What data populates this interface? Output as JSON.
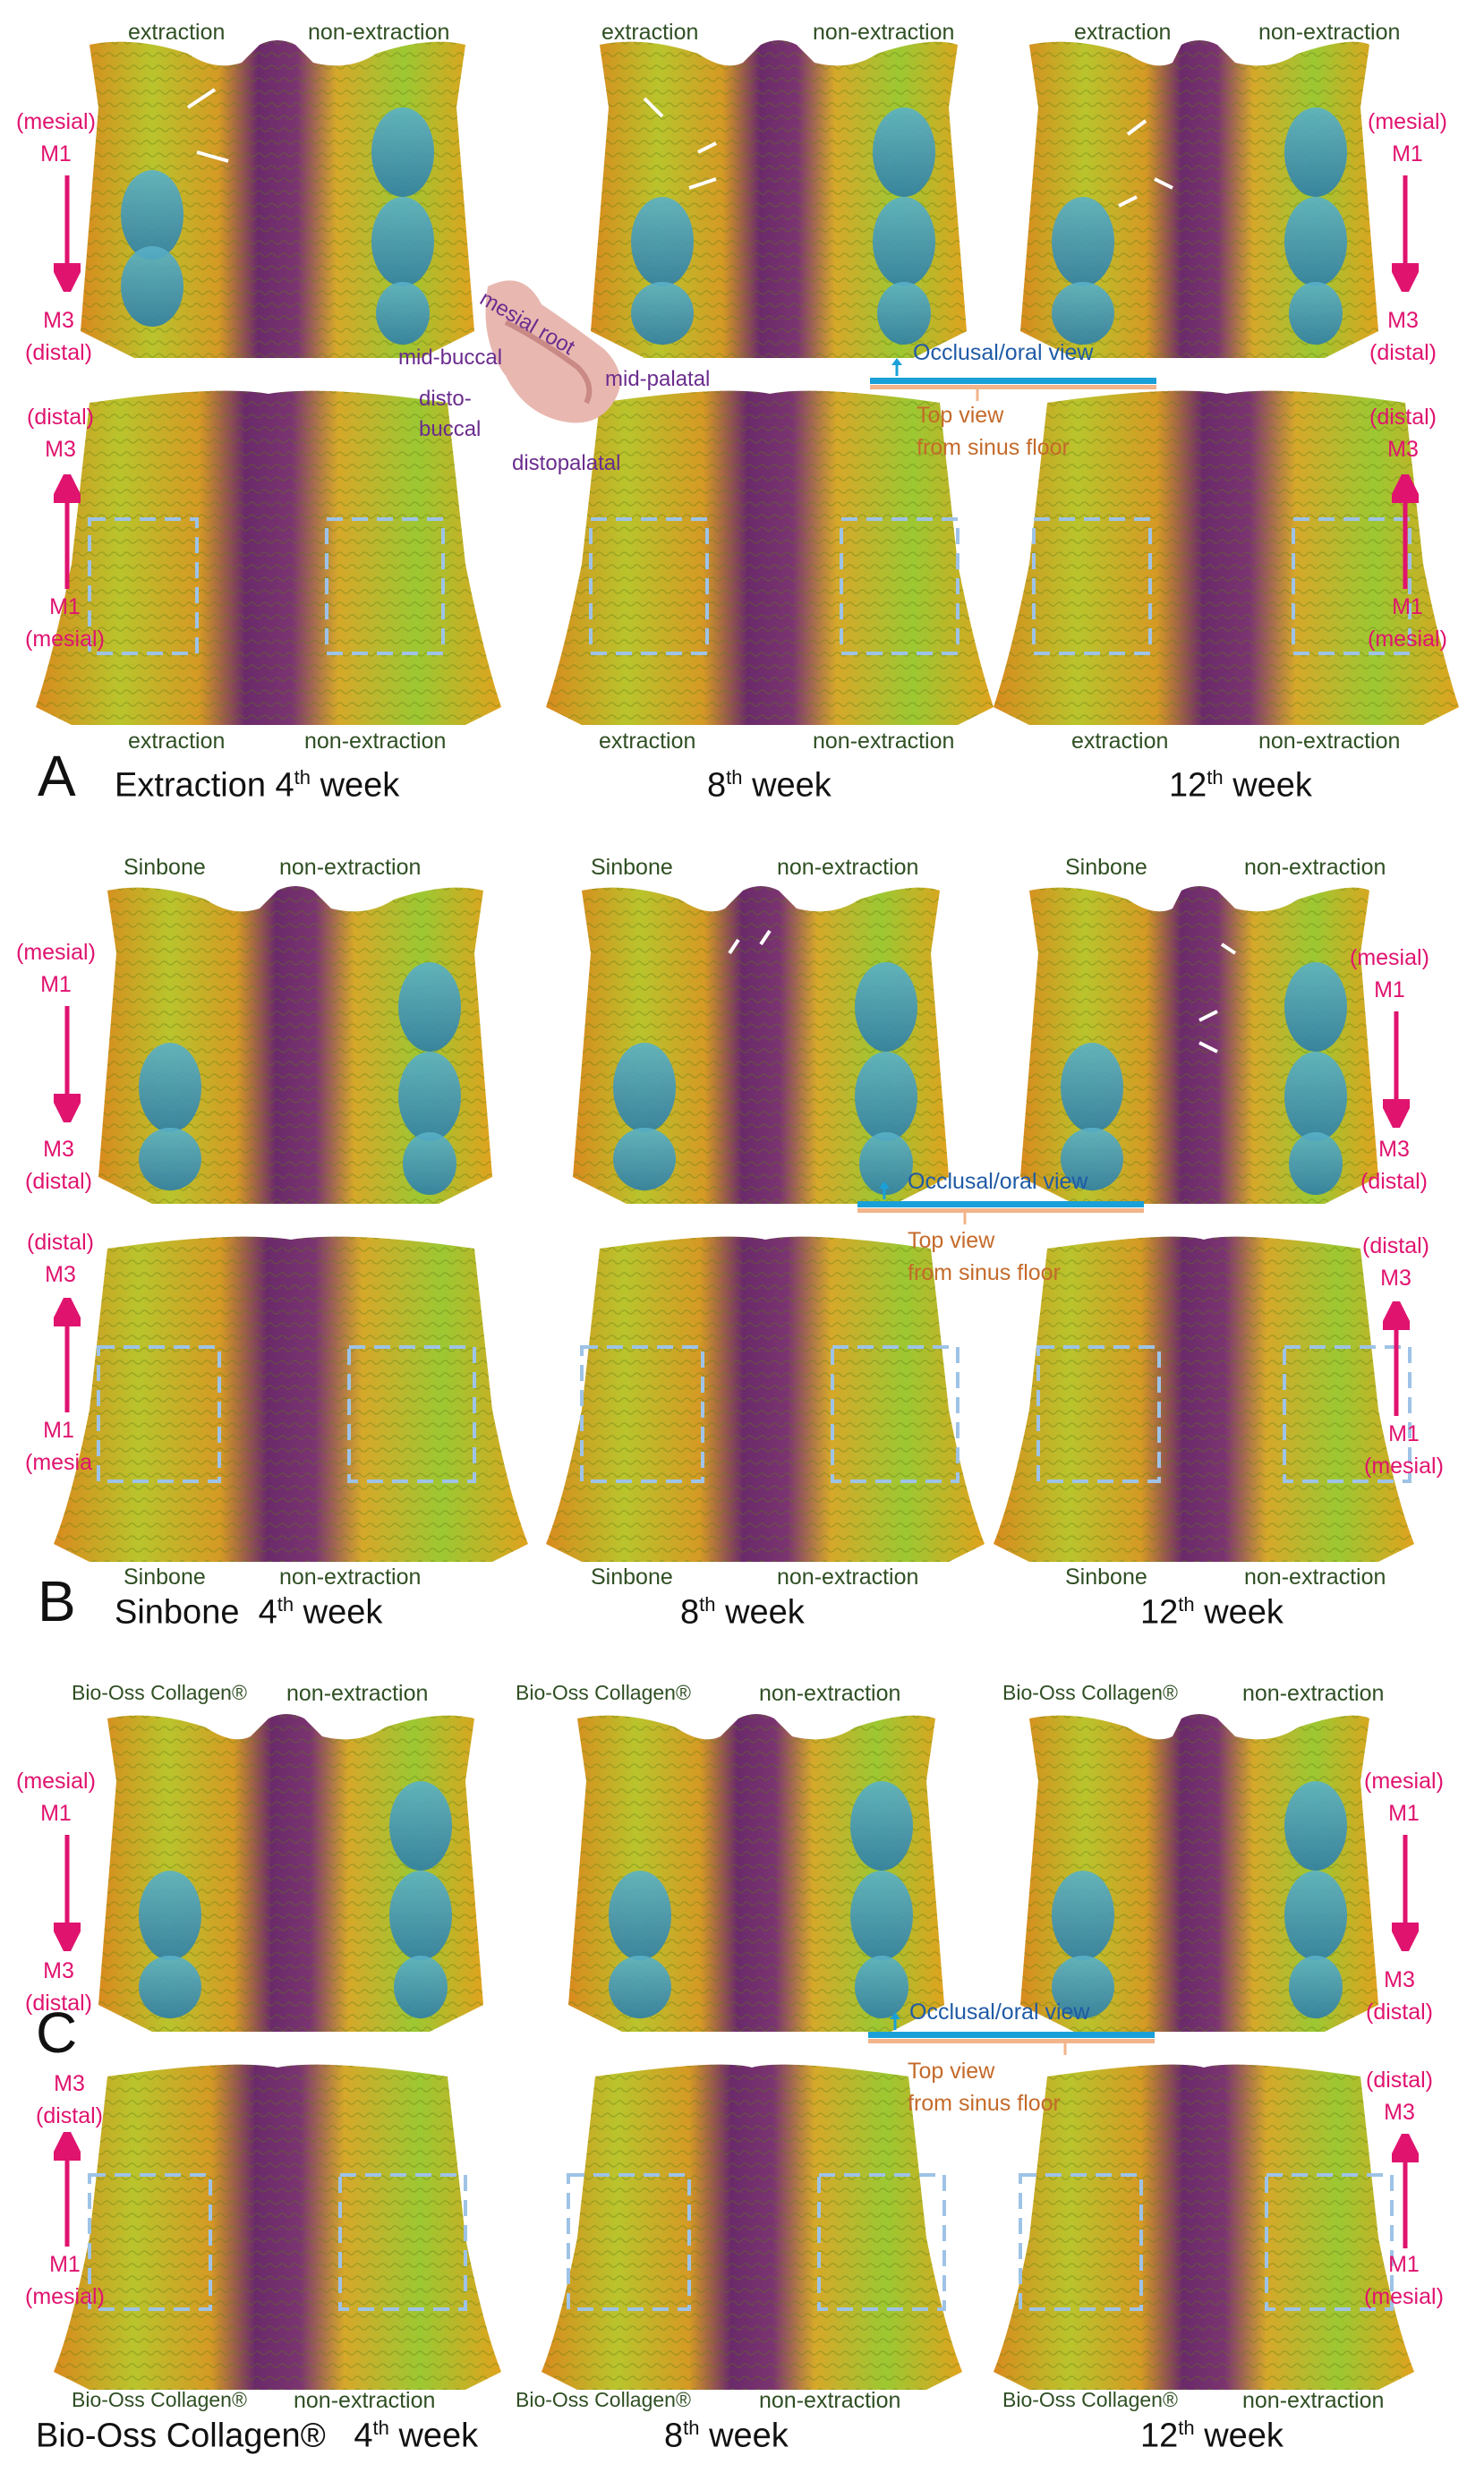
{
  "labels": {
    "extraction": "extraction",
    "non_extraction": "non-extraction",
    "sinbone": "Sinbone",
    "biooss": "Bio-Oss Collagen®",
    "mesial_m1": [
      "(mesial)",
      "M1"
    ],
    "distal_m3": [
      "M3",
      "(distal)"
    ],
    "distal_m3_top": [
      "(distal)",
      "M3"
    ],
    "m1_mesial": [
      "M1",
      "(mesial)"
    ],
    "m1_mesia": [
      "M1",
      "(mesia"
    ]
  },
  "rows": [
    {
      "letter": "A",
      "group": "Extraction",
      "weeks": [
        {
          "n": "4",
          "suffix": "th",
          "word": "week"
        },
        {
          "n": "8",
          "suffix": "th",
          "word": "week"
        },
        {
          "n": "12",
          "suffix": "th",
          "word": "week"
        }
      ]
    },
    {
      "letter": "B",
      "group": "Sinbone",
      "weeks": [
        {
          "n": "4",
          "suffix": "th",
          "word": "week"
        },
        {
          "n": "8",
          "suffix": "th",
          "word": "week"
        },
        {
          "n": "12",
          "suffix": "th",
          "word": "week"
        }
      ]
    },
    {
      "letter": "C",
      "group": "Bio-Oss Collagen®",
      "weeks": [
        {
          "n": "4",
          "suffix": "th",
          "word": "week"
        },
        {
          "n": "8",
          "suffix": "th",
          "word": "week"
        },
        {
          "n": "12",
          "suffix": "th",
          "word": "week"
        }
      ]
    }
  ],
  "legend": {
    "occlusal": "Occlusal/oral view",
    "top_view": [
      "Top view",
      "from sinus floor"
    ],
    "blue_color": "#1aa0d8",
    "orange_color": "#f2b48a"
  },
  "tooth_inset": {
    "mesial_root": "mesial root",
    "mid_buccal": "mid-buccal",
    "mid_palatal": "mid-palatal",
    "disto_buccal": [
      "disto-",
      "buccal"
    ],
    "distopalatal": "distopalatal"
  },
  "colors": {
    "label_green": "#2f4f23",
    "magenta": "#e0136f",
    "dashed_box": "#9ec3e6",
    "purple": "#6a2c8e"
  }
}
